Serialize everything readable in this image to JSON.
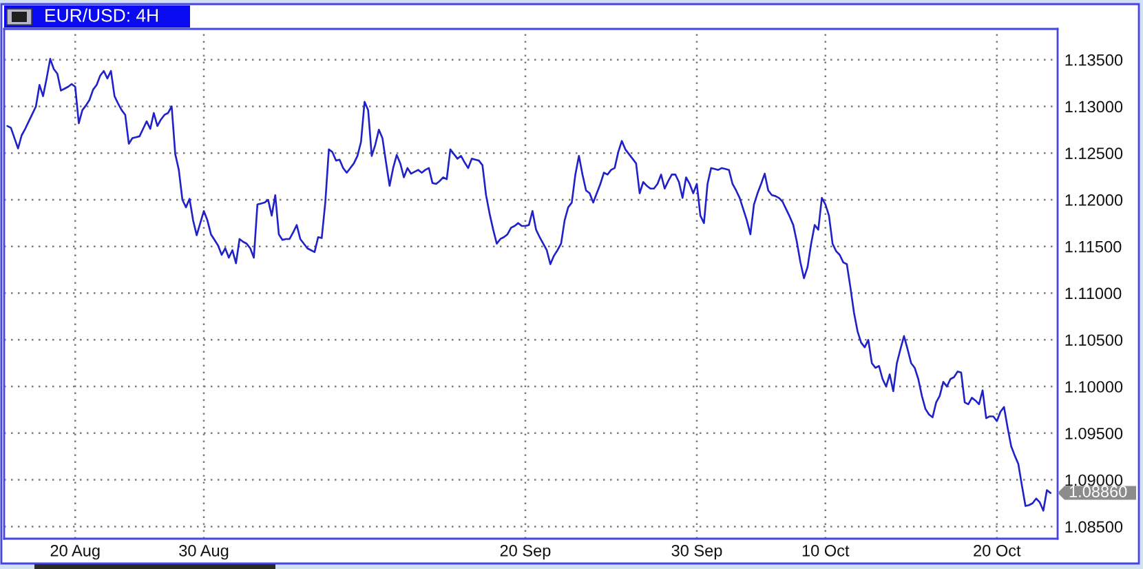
{
  "chart_data": {
    "type": "line",
    "title": "EUR/USD: 4H",
    "categories": [
      null,
      null,
      null,
      null,
      null,
      null,
      null,
      null,
      null,
      null,
      null,
      null,
      null,
      null,
      null,
      null,
      null,
      null,
      null,
      "20 Aug",
      null,
      null,
      null,
      null,
      null,
      null,
      null,
      null,
      null,
      null,
      null,
      null,
      null,
      null,
      null,
      null,
      null,
      null,
      null,
      null,
      null,
      null,
      null,
      null,
      null,
      null,
      null,
      null,
      null,
      null,
      null,
      null,
      null,
      null,
      null,
      "30 Aug",
      null,
      null,
      null,
      null,
      null,
      null,
      null,
      null,
      null,
      null,
      null,
      null,
      null,
      null,
      null,
      null,
      null,
      null,
      null,
      null,
      null,
      null,
      null,
      null,
      null,
      null,
      null,
      null,
      null,
      null,
      null,
      null,
      null,
      null,
      null,
      null,
      null,
      null,
      null,
      null,
      null,
      null,
      null,
      null,
      null,
      null,
      null,
      null,
      null,
      null,
      null,
      null,
      null,
      null,
      null,
      null,
      null,
      null,
      null,
      null,
      null,
      null,
      null,
      null,
      null,
      null,
      null,
      null,
      null,
      null,
      null,
      null,
      null,
      null,
      null,
      null,
      null,
      null,
      null,
      null,
      null,
      null,
      null,
      null,
      null,
      null,
      null,
      null,
      null,
      "20 Sep",
      null,
      null,
      null,
      null,
      null,
      null,
      null,
      null,
      null,
      null,
      null,
      null,
      null,
      null,
      null,
      null,
      null,
      null,
      null,
      null,
      null,
      null,
      null,
      null,
      null,
      null,
      null,
      null,
      null,
      null,
      null,
      null,
      null,
      null,
      null,
      null,
      null,
      null,
      null,
      null,
      null,
      null,
      null,
      null,
      null,
      null,
      null,
      "30 Sep",
      null,
      null,
      null,
      null,
      null,
      null,
      null,
      null,
      null,
      null,
      null,
      null,
      null,
      null,
      null,
      null,
      null,
      null,
      null,
      null,
      null,
      null,
      null,
      null,
      null,
      null,
      null,
      null,
      null,
      null,
      null,
      null,
      null,
      null,
      null,
      "10 Oct",
      null,
      null,
      null,
      null,
      null,
      null,
      null,
      null,
      null,
      null,
      null,
      null,
      null,
      null,
      null,
      null,
      null,
      null,
      null,
      null,
      null,
      null,
      null,
      null,
      null,
      null,
      null,
      null,
      null,
      null,
      null,
      null,
      null,
      null,
      null,
      null,
      null,
      null,
      null,
      null,
      null,
      null,
      null,
      null,
      null,
      null,
      null,
      "20 Oct",
      null,
      null,
      null,
      null,
      null,
      null,
      null,
      null,
      null,
      null,
      null,
      null,
      null,
      null,
      null
    ],
    "series": [
      {
        "color": "#2121c8",
        "values": [
          1.1279,
          1.1277,
          1.1266,
          1.1255,
          1.1269,
          1.1276,
          1.1284,
          1.1292,
          1.13,
          1.1323,
          1.1311,
          1.133,
          1.1351,
          1.134,
          1.1335,
          1.1317,
          1.1319,
          1.1321,
          1.1324,
          1.1321,
          1.1282,
          1.1296,
          1.1301,
          1.1307,
          1.1318,
          1.1323,
          1.1333,
          1.1338,
          1.133,
          1.1338,
          1.1311,
          1.1303,
          1.1296,
          1.1291,
          1.126,
          1.1266,
          1.1267,
          1.1268,
          1.1276,
          1.1284,
          1.1276,
          1.1293,
          1.1279,
          1.1286,
          1.1291,
          1.1293,
          1.13,
          1.1249,
          1.1232,
          1.12,
          1.1192,
          1.1201,
          1.1178,
          1.1162,
          1.1175,
          1.1188,
          1.1178,
          1.1163,
          1.1157,
          1.1151,
          1.1141,
          1.1148,
          1.1138,
          1.1146,
          1.1132,
          1.1158,
          1.1155,
          1.1153,
          1.1148,
          1.1138,
          1.1195,
          1.1196,
          1.1197,
          1.12,
          1.1183,
          1.1205,
          1.1163,
          1.1157,
          1.1158,
          1.1158,
          1.1165,
          1.1173,
          1.1158,
          1.1153,
          1.1148,
          1.1146,
          1.1144,
          1.116,
          1.1159,
          1.1197,
          1.1254,
          1.1251,
          1.1242,
          1.1243,
          1.1234,
          1.1229,
          1.1234,
          1.1239,
          1.1247,
          1.1262,
          1.1305,
          1.1296,
          1.1247,
          1.1259,
          1.1275,
          1.1266,
          1.124,
          1.1215,
          1.1234,
          1.1248,
          1.1239,
          1.1224,
          1.1234,
          1.1228,
          1.123,
          1.1232,
          1.1229,
          1.1232,
          1.1234,
          1.1218,
          1.1217,
          1.122,
          1.1224,
          1.1222,
          1.1254,
          1.1249,
          1.1244,
          1.1247,
          1.124,
          1.1234,
          1.1244,
          1.1243,
          1.1242,
          1.1237,
          1.1205,
          1.1185,
          1.1168,
          1.1153,
          1.1158,
          1.116,
          1.1163,
          1.117,
          1.1172,
          1.1175,
          1.1172,
          1.1172,
          1.1173,
          1.1188,
          1.1168,
          1.116,
          1.1153,
          1.1146,
          1.1131,
          1.114,
          1.1146,
          1.1153,
          1.1178,
          1.1192,
          1.1197,
          1.1227,
          1.1247,
          1.1227,
          1.121,
          1.1207,
          1.1197,
          1.1207,
          1.1217,
          1.1229,
          1.1227,
          1.1232,
          1.1234,
          1.1251,
          1.1263,
          1.1254,
          1.1249,
          1.1244,
          1.1239,
          1.1207,
          1.1219,
          1.1215,
          1.1212,
          1.1212,
          1.1217,
          1.1227,
          1.1212,
          1.122,
          1.1227,
          1.1227,
          1.1219,
          1.1202,
          1.1224,
          1.1217,
          1.1207,
          1.1217,
          1.1183,
          1.1175,
          1.1217,
          1.1234,
          1.1233,
          1.1232,
          1.1234,
          1.1233,
          1.1232,
          1.1217,
          1.121,
          1.1202,
          1.119,
          1.1178,
          1.1163,
          1.1195,
          1.1207,
          1.1217,
          1.1228,
          1.121,
          1.1205,
          1.1204,
          1.1202,
          1.1198,
          1.119,
          1.1182,
          1.1173,
          1.1155,
          1.1133,
          1.1116,
          1.1128,
          1.1153,
          1.1173,
          1.1168,
          1.1202,
          1.1195,
          1.1183,
          1.1153,
          1.1145,
          1.1141,
          1.1133,
          1.1131,
          1.1106,
          1.1079,
          1.1059,
          1.1047,
          1.1042,
          1.105,
          1.1025,
          1.102,
          1.1022,
          1.1008,
          1.1,
          1.1013,
          1.0995,
          1.1025,
          1.104,
          1.1054,
          1.104,
          1.1025,
          1.102,
          1.1008,
          1.099,
          1.0976,
          1.097,
          1.0967,
          1.0983,
          1.099,
          1.1005,
          1.1,
          1.1008,
          1.101,
          1.1016,
          1.1015,
          1.0983,
          1.0981,
          1.0988,
          1.0985,
          1.0981,
          1.0996,
          1.0966,
          1.0968,
          1.0968,
          1.0963,
          1.0973,
          1.0978,
          1.0956,
          1.0936,
          1.0926,
          1.0917,
          1.0894,
          1.0872,
          1.0873,
          1.0875,
          1.088,
          1.0876,
          1.0867,
          1.0889,
          1.0886
        ]
      }
    ],
    "ylim": [
      1.0837,
      1.1383
    ],
    "yticks": [
      {
        "value": 1.085,
        "label": "1.08500"
      },
      {
        "value": 1.09,
        "label": "1.09000"
      },
      {
        "value": 1.095,
        "label": "1.09500"
      },
      {
        "value": 1.1,
        "label": "1.10000"
      },
      {
        "value": 1.105,
        "label": "1.10500"
      },
      {
        "value": 1.11,
        "label": "1.11000"
      },
      {
        "value": 1.115,
        "label": "1.11500"
      },
      {
        "value": 1.12,
        "label": "1.12000"
      },
      {
        "value": 1.125,
        "label": "1.12500"
      },
      {
        "value": 1.13,
        "label": "1.13000"
      },
      {
        "value": 1.135,
        "label": "1.13500"
      }
    ],
    "grid": true,
    "annotations": [
      "1.08860"
    ]
  }
}
